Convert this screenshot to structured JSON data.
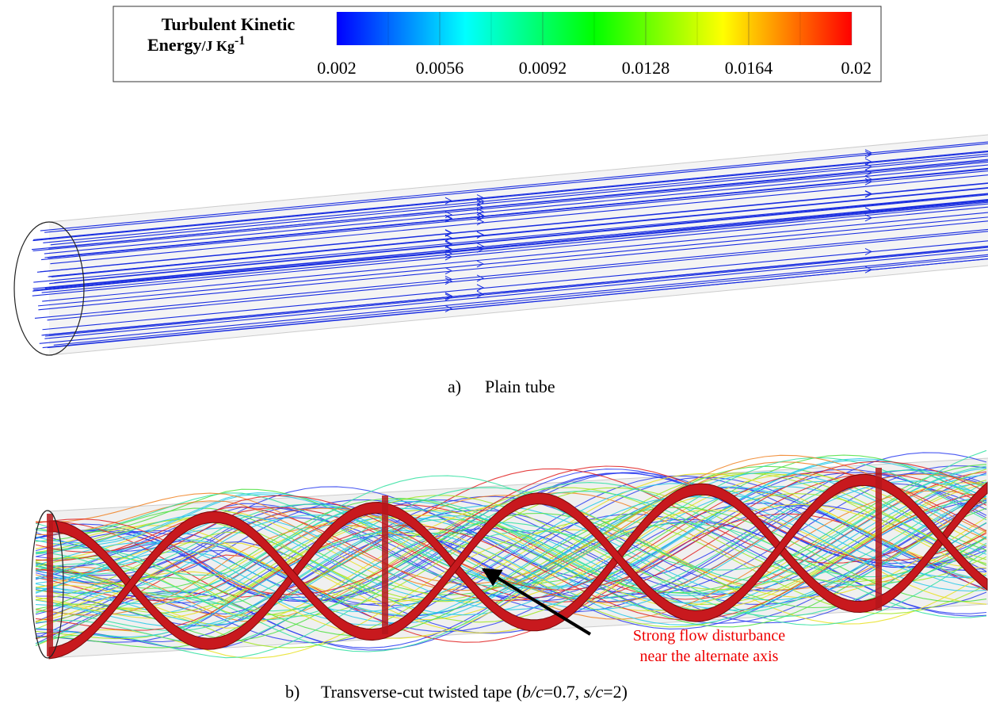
{
  "legend": {
    "title_line1": "Turbulent Kinetic",
    "title_line2": "Energy",
    "unit": "/J Kg",
    "unit_exp": "-1",
    "ticks": [
      0.002,
      0.0056,
      0.0092,
      0.0128,
      0.0164,
      0.02
    ]
  },
  "panel_a": {
    "label": "a)",
    "caption": "Plain tube"
  },
  "panel_b": {
    "label": "b)",
    "caption_start": "Transverse-cut twisted tape (",
    "ratio1": "b/c",
    "ratio1_value": "=0.7, ",
    "ratio2": "s/c",
    "ratio2_value": "=2)",
    "annotation_line1": "Strong flow disturbance",
    "annotation_line2": "near the alternate axis"
  }
}
